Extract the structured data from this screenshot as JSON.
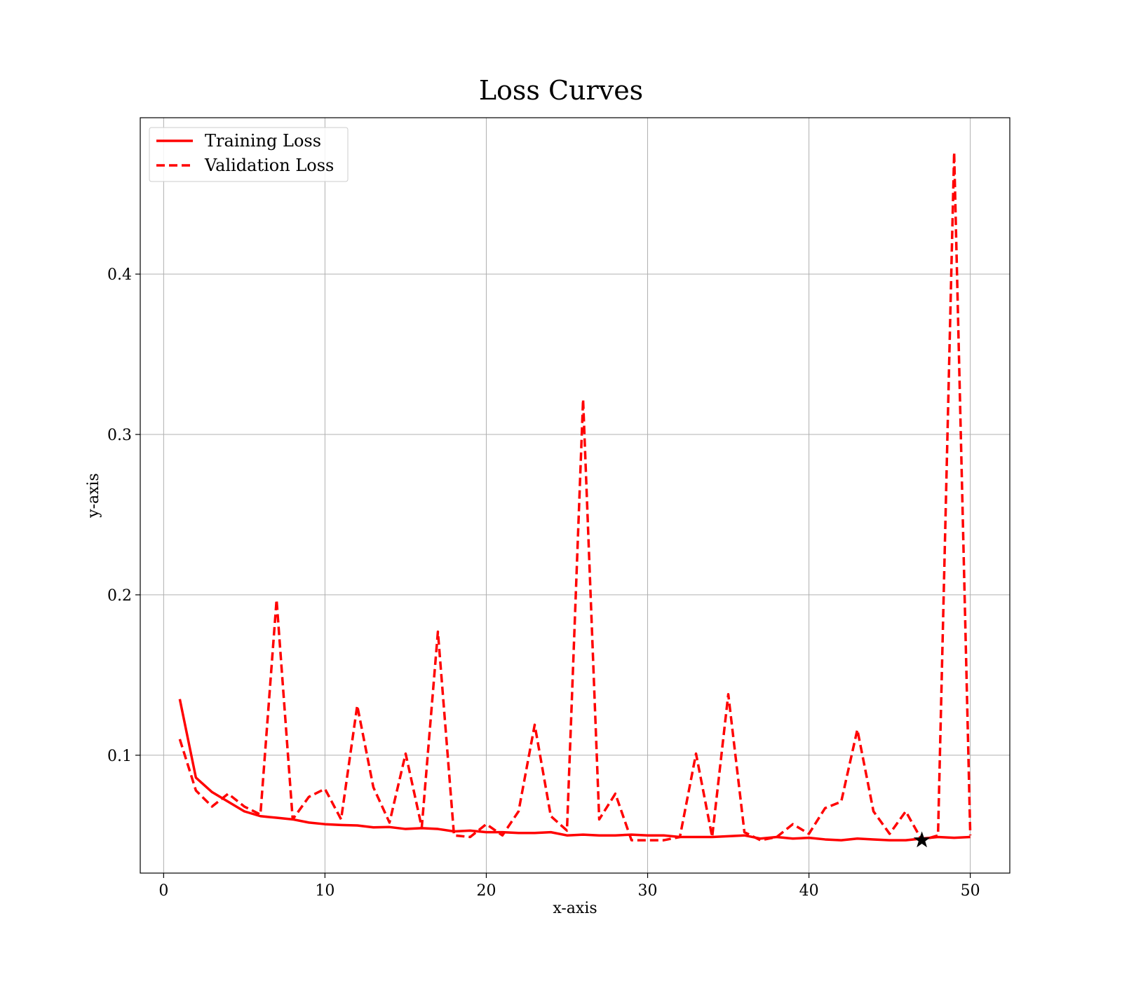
{
  "chart_data": {
    "type": "line",
    "title": "Loss Curves",
    "xlabel": "x-axis",
    "ylabel": "y-axis",
    "xlim": [
      -1.45,
      52.45
    ],
    "ylim": [
      0.0265,
      0.4975
    ],
    "xticks": [
      0,
      10,
      20,
      30,
      40,
      50
    ],
    "yticks": [
      0.1,
      0.2,
      0.3,
      0.4
    ],
    "ytick_labels": [
      "0.1",
      "0.2",
      "0.3",
      "0.4"
    ],
    "grid": true,
    "legend_position": "upper-left",
    "x": [
      1,
      2,
      3,
      4,
      5,
      6,
      7,
      8,
      9,
      10,
      11,
      12,
      13,
      14,
      15,
      16,
      17,
      18,
      19,
      20,
      21,
      22,
      23,
      24,
      25,
      26,
      27,
      28,
      29,
      30,
      31,
      32,
      33,
      34,
      35,
      36,
      37,
      38,
      39,
      40,
      41,
      42,
      43,
      44,
      45,
      46,
      47,
      48,
      49,
      50
    ],
    "series": [
      {
        "name": "Training Loss",
        "color": "#ff0000",
        "style": "solid",
        "values": [
          0.135,
          0.086,
          0.077,
          0.071,
          0.065,
          0.062,
          0.061,
          0.06,
          0.058,
          0.057,
          0.0565,
          0.0562,
          0.055,
          0.0552,
          0.054,
          0.0545,
          0.054,
          0.0525,
          0.053,
          0.052,
          0.052,
          0.0515,
          0.0515,
          0.052,
          0.05,
          0.0505,
          0.05,
          0.05,
          0.0505,
          0.05,
          0.05,
          0.049,
          0.049,
          0.049,
          0.0495,
          0.05,
          0.048,
          0.049,
          0.048,
          0.0485,
          0.0475,
          0.047,
          0.048,
          0.0475,
          0.047,
          0.047,
          0.048,
          0.049,
          0.0485,
          0.049
        ]
      },
      {
        "name": "Validation Loss",
        "color": "#ff0000",
        "style": "dashed",
        "values": [
          0.11,
          0.078,
          0.068,
          0.076,
          0.068,
          0.063,
          0.197,
          0.06,
          0.074,
          0.079,
          0.06,
          0.131,
          0.08,
          0.058,
          0.101,
          0.055,
          0.177,
          0.05,
          0.049,
          0.057,
          0.05,
          0.065,
          0.119,
          0.062,
          0.053,
          0.322,
          0.06,
          0.076,
          0.047,
          0.047,
          0.047,
          0.049,
          0.101,
          0.049,
          0.138,
          0.052,
          0.047,
          0.049,
          0.057,
          0.051,
          0.067,
          0.071,
          0.116,
          0.065,
          0.051,
          0.065,
          0.047,
          0.05,
          0.476,
          0.05
        ]
      }
    ],
    "marker": {
      "series": "Validation Loss",
      "x": 47,
      "y": 0.047,
      "shape": "star",
      "color": "#000000"
    }
  }
}
